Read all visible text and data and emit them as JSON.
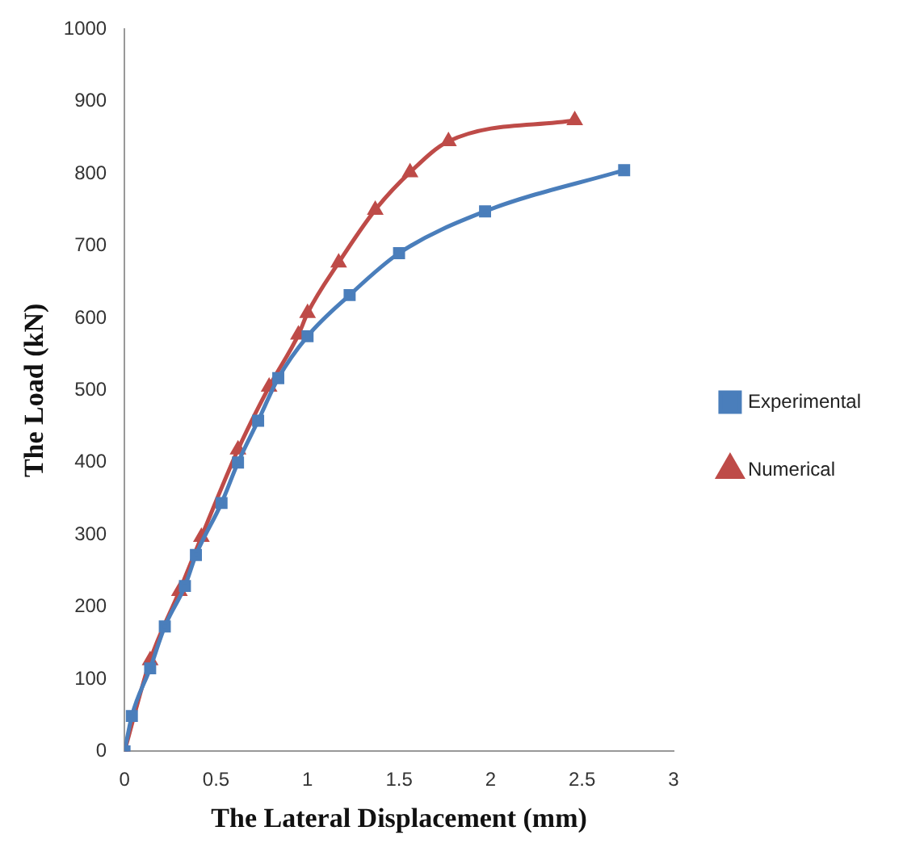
{
  "chart_data": {
    "type": "line",
    "xlabel": "The Lateral Displacement (mm)",
    "ylabel": "The Load (kN)",
    "xlim": [
      0,
      3
    ],
    "xticks": [
      0,
      0.5,
      1,
      1.5,
      2,
      2.5,
      3
    ],
    "ylim": [
      0,
      1000
    ],
    "yticks": [
      0,
      100,
      200,
      300,
      400,
      500,
      600,
      700,
      800,
      900,
      1000
    ],
    "grid": false,
    "legend": "right",
    "series": [
      {
        "name": "Experimental",
        "color": "#4a7ebb",
        "marker": "square",
        "x": [
          0,
          0.04,
          0.14,
          0.22,
          0.33,
          0.39,
          0.53,
          0.62,
          0.73,
          0.84,
          1.0,
          1.23,
          1.5,
          1.97,
          2.73
        ],
        "values": [
          0,
          49,
          115,
          173,
          229,
          272,
          344,
          400,
          458,
          517,
          575,
          632,
          690,
          748,
          805
        ]
      },
      {
        "name": "Numerical",
        "color": "#be4b48",
        "marker": "triangle",
        "x": [
          0,
          0.14,
          0.3,
          0.42,
          0.62,
          0.79,
          0.95,
          1.0,
          1.17,
          1.37,
          1.56,
          1.77,
          2.46
        ],
        "values": [
          0,
          126,
          222,
          297,
          418,
          505,
          577,
          607,
          677,
          750,
          802,
          845,
          874
        ]
      }
    ]
  }
}
